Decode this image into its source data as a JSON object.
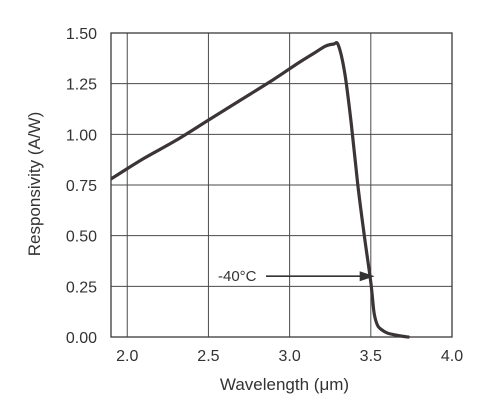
{
  "chart_data": {
    "type": "line",
    "xlabel": "Wavelength (μm)",
    "ylabel": "Responsivity (A/W)",
    "xlim": [
      1.9,
      4.0
    ],
    "ylim": [
      0.0,
      1.5
    ],
    "x_ticks": [
      2.0,
      2.5,
      3.0,
      3.5,
      4.0
    ],
    "x_tick_labels": [
      "2.0",
      "2.5",
      "3.0",
      "3.5",
      "4.0"
    ],
    "y_ticks": [
      0.0,
      0.25,
      0.5,
      0.75,
      1.0,
      1.25,
      1.5
    ],
    "y_tick_labels": [
      "0.00",
      "0.25",
      "0.50",
      "0.75",
      "1.00",
      "1.25",
      "1.50"
    ],
    "grid": true,
    "series": [
      {
        "color": "#3b3536",
        "x": [
          1.9,
          2.1,
          2.3,
          2.5,
          2.7,
          2.9,
          3.05,
          3.15,
          3.22,
          3.27,
          3.3,
          3.34,
          3.38,
          3.42,
          3.46,
          3.5,
          3.52,
          3.54,
          3.56,
          3.6,
          3.65,
          3.7,
          3.73
        ],
        "y": [
          0.78,
          0.88,
          0.97,
          1.07,
          1.17,
          1.27,
          1.35,
          1.4,
          1.435,
          1.445,
          1.44,
          1.3,
          1.05,
          0.75,
          0.5,
          0.27,
          0.12,
          0.06,
          0.04,
          0.02,
          0.01,
          0.003,
          0.0
        ]
      }
    ],
    "annotations": [
      {
        "text": "-40°C",
        "arrow_to": [
          3.53,
          0.3
        ]
      }
    ]
  }
}
